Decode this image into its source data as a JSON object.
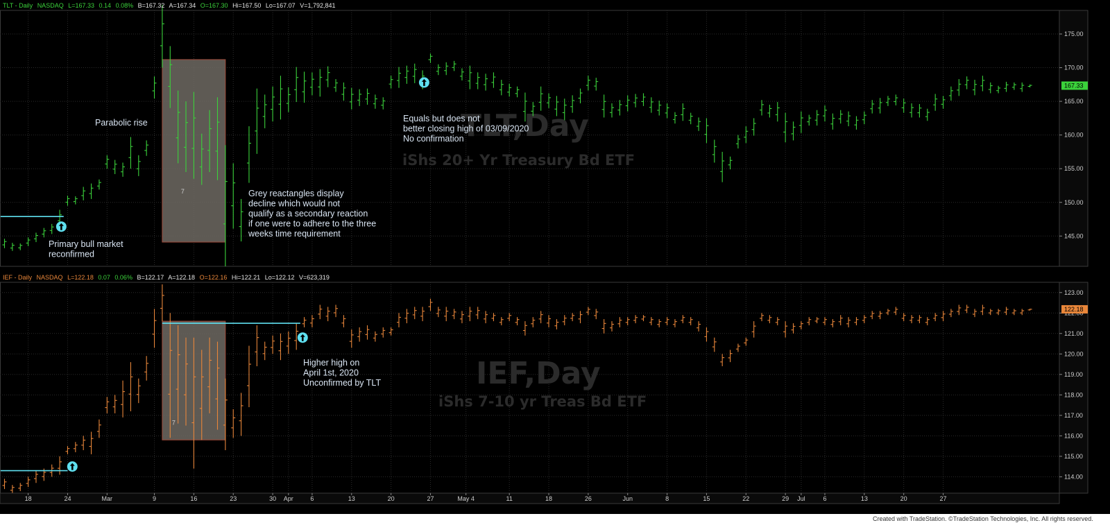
{
  "colors": {
    "tlt_bar": "#3bd23b",
    "ief_bar": "#e8863a",
    "cyan": "#5fe0f0",
    "panel_bg": "#000000",
    "grid": "#2c2c2c",
    "axis_bg": "#0a0a0a"
  },
  "footer": "Created with TradeStation. ©TradeStation Technologies, Inc. All rights reserved.",
  "chart_data": [
    {
      "type": "bar",
      "header": {
        "symbol": "TLT - Daily",
        "exchange": "NASDAQ",
        "last": "L=167.33",
        "change": "0.14",
        "pct": "0.08%",
        "bid": "B=167.32",
        "ask": "A=167.34",
        "open": "O=167.30",
        "high": "Hi=167.50",
        "low": "Lo=167.07",
        "volume": "V=1,792,841"
      },
      "watermark_title": "TLT,Day",
      "watermark_sub": "iShs 20+ Yr Treasury Bd ETF",
      "ylim": [
        140.5,
        178.5
      ],
      "y_ticks": [
        145,
        150,
        155,
        160,
        165,
        170,
        175
      ],
      "y_tick_labels": [
        "145.00",
        "150.00",
        "155.00",
        "160.00",
        "165.00",
        "170.00",
        "175.00"
      ],
      "last_price_label": "167.33",
      "last_price": 167.33,
      "bars_hl": [
        [
          143.2,
          144.6
        ],
        [
          142.8,
          144.0
        ],
        [
          142.9,
          143.9
        ],
        [
          143.5,
          144.8
        ],
        [
          144.1,
          145.5
        ],
        [
          144.8,
          146.2
        ],
        [
          145.3,
          146.8
        ],
        [
          146.4,
          148.9
        ],
        [
          149.5,
          151.0
        ],
        [
          149.7,
          150.9
        ],
        [
          150.3,
          152.3
        ],
        [
          150.5,
          152.8
        ],
        [
          151.9,
          153.4
        ],
        [
          155.0,
          157.0
        ],
        [
          154.2,
          156.3
        ],
        [
          153.8,
          155.9
        ],
        [
          155.0,
          159.7
        ],
        [
          153.9,
          157.0
        ],
        [
          156.9,
          159.2
        ],
        [
          165.4,
          168.7
        ],
        [
          170.0,
          179.3
        ],
        [
          164.0,
          173.2
        ],
        [
          155.8,
          166.6
        ],
        [
          154.5,
          165.0
        ],
        [
          153.5,
          166.4
        ],
        [
          152.6,
          160.2
        ],
        [
          154.5,
          163.7
        ],
        [
          153.3,
          165.6
        ],
        [
          140.5,
          158.5
        ],
        [
          146.1,
          155.8
        ],
        [
          144.2,
          150.5
        ],
        [
          152.9,
          161.3
        ],
        [
          157.2,
          166.9
        ],
        [
          161.0,
          166.0
        ],
        [
          162.0,
          167.2
        ],
        [
          162.3,
          168.8
        ],
        [
          163.4,
          167.1
        ],
        [
          164.9,
          170.1
        ],
        [
          164.8,
          169.4
        ],
        [
          165.9,
          169.3
        ],
        [
          165.7,
          169.8
        ],
        [
          167.1,
          170.2
        ],
        [
          166.4,
          168.3
        ],
        [
          165.1,
          167.8
        ],
        [
          163.8,
          167.0
        ],
        [
          164.3,
          166.8
        ],
        [
          164.5,
          166.9
        ],
        [
          163.9,
          166.0
        ],
        [
          163.8,
          165.6
        ],
        [
          166.9,
          168.8
        ],
        [
          167.0,
          170.1
        ],
        [
          167.6,
          170.3
        ],
        [
          167.7,
          170.6
        ],
        [
          166.8,
          169.6
        ],
        [
          170.7,
          172.1
        ],
        [
          168.9,
          170.5
        ],
        [
          168.9,
          170.8
        ],
        [
          169.5,
          171.0
        ],
        [
          168.1,
          169.9
        ],
        [
          166.8,
          170.3
        ],
        [
          166.8,
          169.3
        ],
        [
          166.6,
          169.1
        ],
        [
          167.0,
          169.3
        ],
        [
          165.9,
          168.2
        ],
        [
          165.7,
          167.6
        ],
        [
          165.6,
          167.2
        ],
        [
          162.0,
          166.3
        ],
        [
          162.8,
          164.9
        ],
        [
          163.6,
          167.2
        ],
        [
          164.0,
          166.2
        ],
        [
          162.8,
          165.8
        ],
        [
          162.2,
          165.4
        ],
        [
          163.3,
          165.9
        ],
        [
          164.7,
          166.9
        ],
        [
          166.6,
          168.8
        ],
        [
          166.6,
          168.5
        ],
        [
          162.6,
          166.0
        ],
        [
          162.6,
          164.7
        ],
        [
          162.9,
          165.2
        ],
        [
          163.5,
          165.9
        ],
        [
          164.1,
          166.1
        ],
        [
          164.3,
          166.2
        ],
        [
          163.3,
          165.6
        ],
        [
          162.9,
          165.1
        ],
        [
          162.5,
          164.7
        ],
        [
          161.7,
          163.4
        ],
        [
          162.1,
          164.7
        ],
        [
          161.6,
          163.3
        ],
        [
          160.6,
          162.6
        ],
        [
          158.8,
          162.5
        ],
        [
          155.9,
          159.3
        ],
        [
          153.0,
          157.5
        ],
        [
          154.9,
          156.8
        ],
        [
          158.0,
          160.0
        ],
        [
          158.8,
          161.3
        ],
        [
          159.9,
          162.5
        ],
        [
          162.9,
          165.2
        ],
        [
          162.6,
          164.5
        ],
        [
          162.0,
          164.9
        ],
        [
          158.9,
          163.3
        ],
        [
          159.2,
          162.0
        ],
        [
          160.3,
          163.5
        ],
        [
          161.4,
          163.0
        ],
        [
          161.4,
          163.7
        ],
        [
          162.0,
          164.4
        ],
        [
          160.8,
          163.2
        ],
        [
          161.7,
          163.7
        ],
        [
          161.3,
          163.5
        ],
        [
          160.8,
          162.8
        ],
        [
          161.6,
          163.5
        ],
        [
          163.2,
          165.2
        ],
        [
          163.2,
          165.5
        ],
        [
          164.3,
          165.8
        ],
        [
          164.4,
          166.0
        ],
        [
          163.3,
          165.4
        ],
        [
          162.6,
          164.7
        ],
        [
          162.6,
          164.6
        ],
        [
          162.1,
          163.9
        ],
        [
          163.6,
          166.1
        ],
        [
          163.9,
          165.8
        ],
        [
          165.1,
          167.2
        ],
        [
          165.8,
          168.3
        ],
        [
          166.8,
          168.7
        ],
        [
          165.9,
          168.2
        ],
        [
          166.5,
          168.8
        ],
        [
          166.2,
          167.8
        ],
        [
          166.2,
          167.3
        ],
        [
          166.4,
          167.9
        ],
        [
          166.7,
          167.8
        ],
        [
          166.4,
          167.8
        ],
        [
          167.07,
          167.5
        ]
      ],
      "rectangle": {
        "start_bar": 20,
        "end_bar": 28,
        "low": 144.1,
        "high": 171.2,
        "label": "7"
      },
      "support_line": {
        "value": 147.9,
        "start_bar": -0.5,
        "end_bar": 7.5
      },
      "arrows": [
        {
          "bar": 7.2,
          "value": 146.4
        },
        {
          "bar": 53.2,
          "value": 167.8
        }
      ],
      "annotations": [
        "Parabolic rise",
        "Primary bull market\nreconfirmed",
        "Grey reactangles display\ndecline which would not\nqualify as a secondary reaction\nif one were to adhere to the three\nweeks time requirement",
        "Equals but does not\nbetter closing high of 03/09/2020\nNo confirmation"
      ]
    },
    {
      "type": "bar",
      "header": {
        "symbol": "IEF - Daily",
        "exchange": "NASDAQ",
        "last": "L=122.18",
        "change": "0.07",
        "pct": "0.06%",
        "bid": "B=122.17",
        "ask": "A=122.18",
        "open": "O=122.16",
        "high": "Hi=122.21",
        "low": "Lo=122.12",
        "volume": "V=623,319"
      },
      "watermark_title": "IEF,Day",
      "watermark_sub": "iShs 7-10 yr Treas Bd ETF",
      "ylim": [
        113.2,
        123.5
      ],
      "y_ticks": [
        114,
        115,
        116,
        117,
        118,
        119,
        120,
        121,
        122,
        123
      ],
      "y_tick_labels": [
        "114.00",
        "115.00",
        "116.00",
        "117.00",
        "118.00",
        "119.00",
        "120.00",
        "121.00",
        "122.00",
        "123.00"
      ],
      "last_price_label": "122.18",
      "last_price": 122.18,
      "bars_hl": [
        [
          113.4,
          113.9
        ],
        [
          113.2,
          113.6
        ],
        [
          113.3,
          113.7
        ],
        [
          113.5,
          114.0
        ],
        [
          113.7,
          114.3
        ],
        [
          113.8,
          114.4
        ],
        [
          114.0,
          114.6
        ],
        [
          114.1,
          115.0
        ],
        [
          115.1,
          115.5
        ],
        [
          115.2,
          115.7
        ],
        [
          115.3,
          116.0
        ],
        [
          115.1,
          116.2
        ],
        [
          115.9,
          116.8
        ],
        [
          117.1,
          117.9
        ],
        [
          117.1,
          118.0
        ],
        [
          116.9,
          118.7
        ],
        [
          117.2,
          119.6
        ],
        [
          117.6,
          118.8
        ],
        [
          118.7,
          119.9
        ],
        [
          120.3,
          122.2
        ],
        [
          121.6,
          123.4
        ],
        [
          115.9,
          122.0
        ],
        [
          116.6,
          121.4
        ],
        [
          116.5,
          120.8
        ],
        [
          114.4,
          120.8
        ],
        [
          115.8,
          120.2
        ],
        [
          117.1,
          120.8
        ],
        [
          116.3,
          120.6
        ],
        [
          115.3,
          118.8
        ],
        [
          115.9,
          117.3
        ],
        [
          116.0,
          118.1
        ],
        [
          117.4,
          120.4
        ],
        [
          119.4,
          121.4
        ],
        [
          119.7,
          120.6
        ],
        [
          120.0,
          120.9
        ],
        [
          119.7,
          121.0
        ],
        [
          120.0,
          121.1
        ],
        [
          120.2,
          121.5
        ],
        [
          121.3,
          121.8
        ],
        [
          121.3,
          121.9
        ],
        [
          121.7,
          122.4
        ],
        [
          121.6,
          122.3
        ],
        [
          121.8,
          122.4
        ],
        [
          121.3,
          121.9
        ],
        [
          120.3,
          121.2
        ],
        [
          120.6,
          121.3
        ],
        [
          120.7,
          121.4
        ],
        [
          120.6,
          121.1
        ],
        [
          120.8,
          121.3
        ],
        [
          120.9,
          121.3
        ],
        [
          121.3,
          122.0
        ],
        [
          121.5,
          122.2
        ],
        [
          121.7,
          122.3
        ],
        [
          121.6,
          122.3
        ],
        [
          122.1,
          122.7
        ],
        [
          121.8,
          122.3
        ],
        [
          121.6,
          122.3
        ],
        [
          121.7,
          122.2
        ],
        [
          121.5,
          122.1
        ],
        [
          121.6,
          122.3
        ],
        [
          121.7,
          122.3
        ],
        [
          121.5,
          122.1
        ],
        [
          121.6,
          122.0
        ],
        [
          121.4,
          121.8
        ],
        [
          121.6,
          122.0
        ],
        [
          121.4,
          121.8
        ],
        [
          120.9,
          121.6
        ],
        [
          121.3,
          121.8
        ],
        [
          121.5,
          122.1
        ],
        [
          121.3,
          121.9
        ],
        [
          121.2,
          121.7
        ],
        [
          121.4,
          121.9
        ],
        [
          121.6,
          122.0
        ],
        [
          121.5,
          122.1
        ],
        [
          121.9,
          122.3
        ],
        [
          121.7,
          122.2
        ],
        [
          121.0,
          121.7
        ],
        [
          121.1,
          121.6
        ],
        [
          121.3,
          121.8
        ],
        [
          121.4,
          121.8
        ],
        [
          121.5,
          121.9
        ],
        [
          121.6,
          121.9
        ],
        [
          121.4,
          121.8
        ],
        [
          121.3,
          121.7
        ],
        [
          121.4,
          121.8
        ],
        [
          121.3,
          121.7
        ],
        [
          121.5,
          121.9
        ],
        [
          121.4,
          121.8
        ],
        [
          121.1,
          121.6
        ],
        [
          120.6,
          121.3
        ],
        [
          120.1,
          120.8
        ],
        [
          119.4,
          120.0
        ],
        [
          119.6,
          120.2
        ],
        [
          120.1,
          120.5
        ],
        [
          120.4,
          120.8
        ],
        [
          120.8,
          121.6
        ],
        [
          121.6,
          122.0
        ],
        [
          121.5,
          121.9
        ],
        [
          121.4,
          121.8
        ],
        [
          120.8,
          121.6
        ],
        [
          121.0,
          121.5
        ],
        [
          121.2,
          121.6
        ],
        [
          121.4,
          121.8
        ],
        [
          121.5,
          121.8
        ],
        [
          121.4,
          121.8
        ],
        [
          121.3,
          121.7
        ],
        [
          121.4,
          121.9
        ],
        [
          121.3,
          121.8
        ],
        [
          121.4,
          121.8
        ],
        [
          121.5,
          121.9
        ],
        [
          121.7,
          122.1
        ],
        [
          121.7,
          122.1
        ],
        [
          121.9,
          122.2
        ],
        [
          121.9,
          122.3
        ],
        [
          121.6,
          122.0
        ],
        [
          121.5,
          121.9
        ],
        [
          121.5,
          121.9
        ],
        [
          121.4,
          121.8
        ],
        [
          121.6,
          122.0
        ],
        [
          121.6,
          122.1
        ],
        [
          121.8,
          122.2
        ],
        [
          121.9,
          122.4
        ],
        [
          122.0,
          122.4
        ],
        [
          121.8,
          122.2
        ],
        [
          121.9,
          122.4
        ],
        [
          121.9,
          122.2
        ],
        [
          121.9,
          122.2
        ],
        [
          121.9,
          122.3
        ],
        [
          121.9,
          122.2
        ],
        [
          121.9,
          122.2
        ],
        [
          122.12,
          122.21
        ]
      ],
      "rectangle": {
        "start_bar": 20,
        "end_bar": 28,
        "low": 115.8,
        "high": 121.6,
        "label": "7"
      },
      "support_line": {
        "value": 114.3,
        "start_bar": -0.5,
        "end_bar": 8.0
      },
      "resistance_line": {
        "value": 121.5,
        "start_bar": 20.0,
        "end_bar": 37.5
      },
      "arrows": [
        {
          "bar": 8.6,
          "value": 114.5
        },
        {
          "bar": 37.8,
          "value": 120.8
        }
      ],
      "annotations": [
        "Higher high on\nApril 1st, 2020\nUnconfirmed by TLT"
      ]
    }
  ],
  "x_axis": {
    "labels": [
      "18",
      "24",
      "Mar",
      "9",
      "16",
      "23",
      "30",
      "Apr",
      "6",
      "13",
      "20",
      "27",
      "May 4",
      "11",
      "18",
      "26",
      "Jun",
      "8",
      "15",
      "22",
      "29",
      "Jul",
      "6",
      "13",
      "20",
      "27"
    ],
    "label_bars": [
      3,
      8,
      13,
      19,
      24,
      29,
      34,
      36,
      39,
      44,
      49,
      54,
      58.5,
      64,
      69,
      74,
      79,
      84,
      89,
      94,
      99,
      101,
      104,
      109,
      114,
      119
    ]
  }
}
